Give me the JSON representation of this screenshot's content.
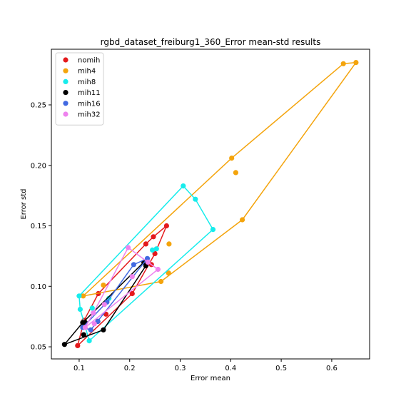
{
  "chart_data": {
    "type": "scatter",
    "title": "rgbd_dataset_freiburg1_360_Error mean-std results",
    "xlabel": "Error mean",
    "ylabel": "Error std",
    "xlim": [
      0.045,
      0.675
    ],
    "ylim": [
      0.04,
      0.296
    ],
    "x_ticks": [
      {
        "value": 0.1,
        "label": "0.1"
      },
      {
        "value": 0.2,
        "label": "0.2"
      },
      {
        "value": 0.3,
        "label": "0.3"
      },
      {
        "value": 0.4,
        "label": "0.4"
      },
      {
        "value": 0.5,
        "label": "0.5"
      },
      {
        "value": 0.6,
        "label": "0.6"
      }
    ],
    "y_ticks": [
      {
        "value": 0.05,
        "label": "0.05"
      },
      {
        "value": 0.1,
        "label": "0.10"
      },
      {
        "value": 0.15,
        "label": "0.15"
      },
      {
        "value": 0.2,
        "label": "0.20"
      },
      {
        "value": 0.25,
        "label": "0.25"
      }
    ],
    "grid": false,
    "legend_position": "top-left",
    "series": [
      {
        "name": "nomih",
        "color": "#e41a1c",
        "points": [
          [
            0.097,
            0.051
          ],
          [
            0.138,
            0.094
          ],
          [
            0.205,
            0.094
          ],
          [
            0.247,
            0.141
          ],
          [
            0.25,
            0.127
          ],
          [
            0.243,
            0.118
          ],
          [
            0.232,
            0.135
          ],
          [
            0.273,
            0.15
          ],
          [
            0.153,
            0.077
          ],
          [
            0.11,
            0.072
          ]
        ],
        "hull": [
          [
            0.097,
            0.051
          ],
          [
            0.205,
            0.094
          ],
          [
            0.25,
            0.127
          ],
          [
            0.273,
            0.15
          ],
          [
            0.247,
            0.141
          ],
          [
            0.232,
            0.135
          ],
          [
            0.138,
            0.094
          ],
          [
            0.11,
            0.072
          ]
        ]
      },
      {
        "name": "mih4",
        "color": "#f4a40c",
        "points": [
          [
            0.648,
            0.285
          ],
          [
            0.623,
            0.284
          ],
          [
            0.402,
            0.206
          ],
          [
            0.41,
            0.194
          ],
          [
            0.423,
            0.155
          ],
          [
            0.262,
            0.104
          ],
          [
            0.277,
            0.111
          ],
          [
            0.108,
            0.092
          ],
          [
            0.148,
            0.101
          ],
          [
            0.278,
            0.135
          ]
        ],
        "hull": [
          [
            0.108,
            0.092
          ],
          [
            0.262,
            0.104
          ],
          [
            0.423,
            0.155
          ],
          [
            0.648,
            0.285
          ],
          [
            0.623,
            0.284
          ],
          [
            0.402,
            0.206
          ]
        ]
      },
      {
        "name": "mih8",
        "color": "#17ecec",
        "points": [
          [
            0.1,
            0.092
          ],
          [
            0.102,
            0.081
          ],
          [
            0.306,
            0.183
          ],
          [
            0.33,
            0.172
          ],
          [
            0.365,
            0.147
          ],
          [
            0.12,
            0.055
          ],
          [
            0.126,
            0.082
          ],
          [
            0.245,
            0.13
          ],
          [
            0.253,
            0.131
          ],
          [
            0.159,
            0.09
          ]
        ],
        "hull": [
          [
            0.1,
            0.092
          ],
          [
            0.102,
            0.081
          ],
          [
            0.12,
            0.055
          ],
          [
            0.365,
            0.147
          ],
          [
            0.33,
            0.172
          ],
          [
            0.306,
            0.183
          ]
        ]
      },
      {
        "name": "mih11",
        "color": "#000000",
        "points": [
          [
            0.071,
            0.052
          ],
          [
            0.148,
            0.064
          ],
          [
            0.232,
            0.117
          ],
          [
            0.228,
            0.12
          ],
          [
            0.107,
            0.07
          ],
          [
            0.109,
            0.06
          ],
          [
            0.112,
            0.07
          ],
          [
            0.137,
            0.071
          ]
        ],
        "hull": [
          [
            0.071,
            0.052
          ],
          [
            0.148,
            0.064
          ],
          [
            0.232,
            0.117
          ],
          [
            0.228,
            0.12
          ],
          [
            0.107,
            0.07
          ]
        ]
      },
      {
        "name": "mih16",
        "color": "#4169e1",
        "points": [
          [
            0.107,
            0.066
          ],
          [
            0.155,
            0.087
          ],
          [
            0.208,
            0.118
          ],
          [
            0.235,
            0.123
          ],
          [
            0.123,
            0.064
          ],
          [
            0.137,
            0.071
          ]
        ],
        "hull": [
          [
            0.107,
            0.066
          ],
          [
            0.123,
            0.064
          ],
          [
            0.235,
            0.123
          ],
          [
            0.208,
            0.118
          ],
          [
            0.155,
            0.087
          ]
        ]
      },
      {
        "name": "mih32",
        "color": "#ee82ee",
        "points": [
          [
            0.112,
            0.066
          ],
          [
            0.128,
            0.078
          ],
          [
            0.197,
            0.132
          ],
          [
            0.236,
            0.12
          ],
          [
            0.256,
            0.114
          ],
          [
            0.205,
            0.108
          ],
          [
            0.15,
            0.085
          ],
          [
            0.13,
            0.069
          ]
        ],
        "hull": [
          [
            0.112,
            0.066
          ],
          [
            0.256,
            0.114
          ],
          [
            0.236,
            0.12
          ],
          [
            0.197,
            0.132
          ],
          [
            0.128,
            0.078
          ]
        ]
      }
    ]
  }
}
